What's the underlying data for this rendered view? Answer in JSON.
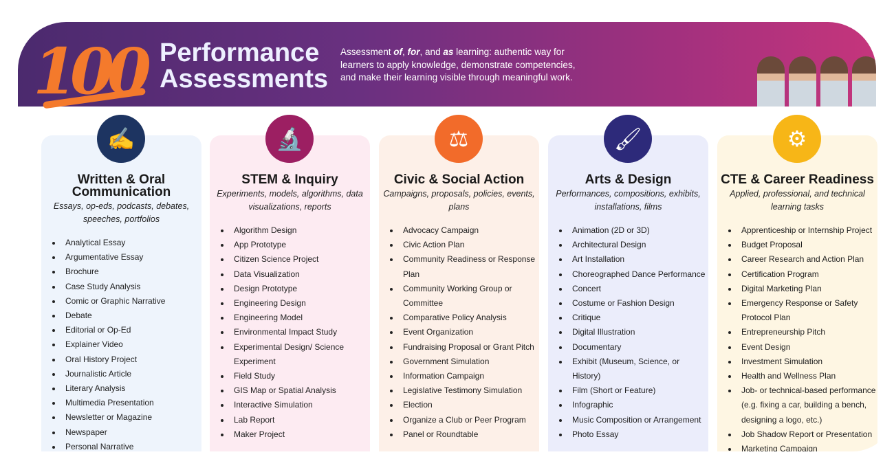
{
  "header": {
    "logo": "100",
    "title_line1": "Performance",
    "title_line2": "Assessments",
    "subtitle_pre": "Assessment ",
    "of": "of",
    ", ": ", ",
    "for": "for",
    "and": ", and ",
    "as": "as",
    "subtitle_post": " learning: authentic way for learners to apply knowledge, demonstrate competencies, and make their learning visible through meaningful work."
  },
  "columns": [
    {
      "title": "Written & Oral Communication",
      "desc": "Essays, op-eds, podcasts, debates, speeches, portfolios",
      "color": "#1d3461",
      "bg": "#eef4fc",
      "icon": "pen-hand-icon",
      "glyph": "✍",
      "items": [
        "Analytical Essay",
        "Argumentative Essay",
        "Brochure",
        "Case Study Analysis",
        "Comic or Graphic Narrative",
        "Debate",
        "Editorial or Op-Ed",
        "Explainer Video",
        "Oral History Project",
        "Journalistic Article",
        "Literary Analysis",
        "Multimedia Presentation",
        "Newsletter or Magazine",
        "Newspaper",
        "Personal Narrative"
      ]
    },
    {
      "title": "STEM & Inquiry",
      "desc": "Experiments, models, algorithms, data visualizations, reports",
      "color": "#9c1f62",
      "bg": "#fdebf2",
      "icon": "microscope-icon",
      "glyph": "🔬",
      "items": [
        "Algorithm Design",
        "App Prototype",
        "Citizen Science Project",
        "Data Visualization",
        "Design Prototype",
        "Engineering Design",
        "Engineering Model",
        "Environmental Impact Study",
        "Experimental Design/ Science Experiment",
        "Field Study",
        "GIS Map or Spatial Analysis",
        "Interactive Simulation",
        "Lab Report",
        "Maker Project"
      ]
    },
    {
      "title": "Civic & Social Action",
      "desc": "Campaigns, proposals, policies, events, plans",
      "color": "#f26b2a",
      "bg": "#fdf0e8",
      "icon": "scales-icon",
      "glyph": "⚖",
      "items": [
        "Advocacy Campaign",
        "Civic Action Plan",
        "Community Readiness or Response Plan",
        "Community Working Group or Committee",
        "Comparative Policy Analysis",
        "Event Organization",
        "Fundraising Proposal or Grant Pitch",
        "Government Simulation",
        "Information Campaign",
        "Legislative Testimony Simulation",
        "Election",
        "Organize a Club or Peer Program",
        "Panel or Roundtable"
      ]
    },
    {
      "title": "Arts & Design",
      "desc": "Performances, compositions, exhibits, installations, films",
      "color": "#2d2a7a",
      "bg": "#ebedfb",
      "icon": "paintbrush-icon",
      "glyph": "🖌",
      "items": [
        "Animation (2D or 3D)",
        "Architectural Design",
        "Art Installation",
        "Choreographed Dance Performance",
        "Concert",
        "Costume or Fashion Design",
        "Critique",
        "Digital Illustration",
        "Documentary",
        "Exhibit (Museum, Science, or History)",
        "Film (Short or Feature)",
        "Infographic",
        "Music Composition or Arrangement",
        "Photo Essay"
      ]
    },
    {
      "title": "CTE & Career Readiness",
      "desc": "Applied, professional, and technical learning tasks",
      "color": "#f7b617",
      "bg": "#fef6e3",
      "icon": "gears-head-icon",
      "glyph": "⚙",
      "items": [
        "Apprenticeship or Internship Project",
        "Budget Proposal",
        "Career Research and Action Plan",
        "Certification Program",
        "Digital Marketing Plan",
        "Emergency Response or Safety Protocol Plan",
        "Entrepreneurship Pitch",
        "Event Design",
        "Investment Simulation",
        "Health and Wellness Plan",
        "Job- or technical-based performance (e.g. fixing a car, building a bench, designing a logo, etc.)",
        "Job Shadow Report or Presentation",
        "Marketing Campaign"
      ]
    }
  ]
}
